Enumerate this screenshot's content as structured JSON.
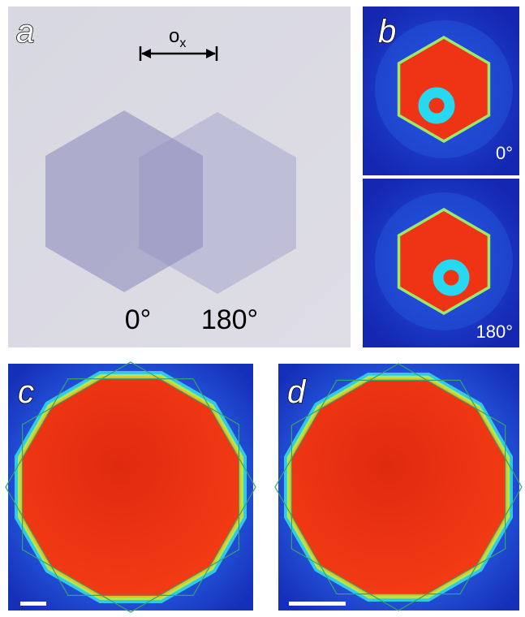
{
  "panels": [
    {
      "label": "a",
      "offset_label": {
        "main": "o",
        "subscript": "x"
      },
      "angle_labels": [
        "0°",
        "180°"
      ]
    },
    {
      "label": "b",
      "angle_labels": [
        "0°",
        "180°"
      ]
    },
    {
      "label": "c"
    },
    {
      "label": "d"
    }
  ]
}
